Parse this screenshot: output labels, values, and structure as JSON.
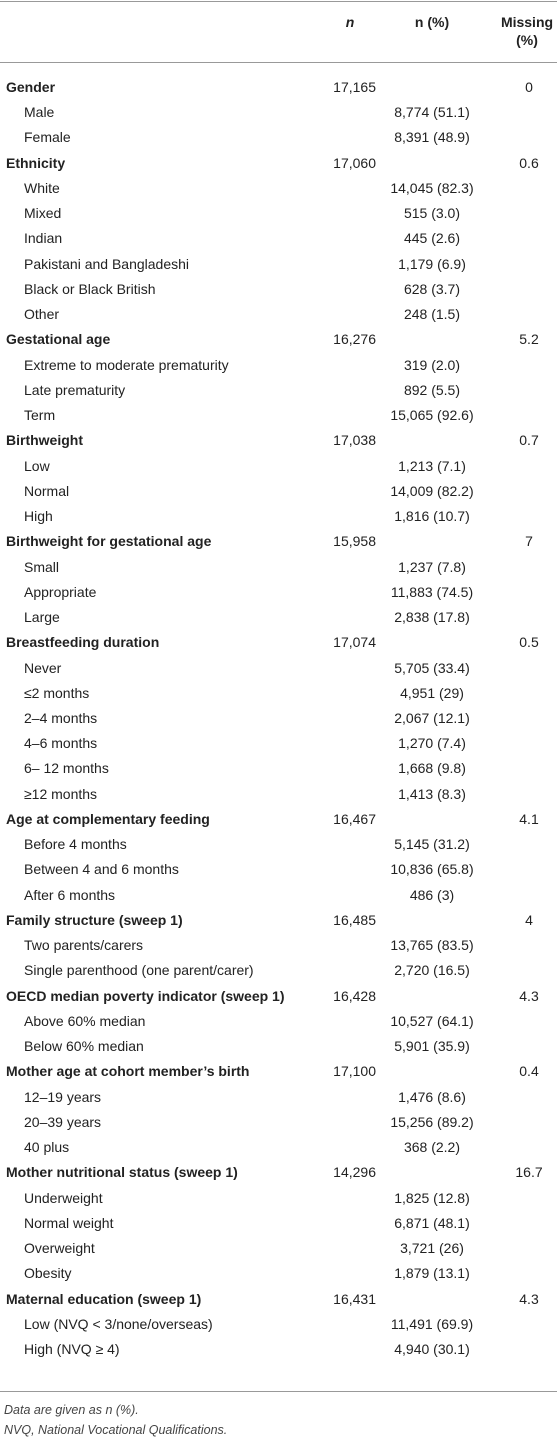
{
  "table": {
    "columns": [
      "n",
      "n (%)",
      "Missing (%)"
    ],
    "groups": [
      {
        "label": "Gender",
        "n": "17,165",
        "missing": "0",
        "items": [
          {
            "label": "Male",
            "n_pct": "8,774 (51.1)"
          },
          {
            "label": "Female",
            "n_pct": "8,391 (48.9)"
          }
        ]
      },
      {
        "label": "Ethnicity",
        "n": "17,060",
        "missing": "0.6",
        "items": [
          {
            "label": "White",
            "n_pct": "14,045 (82.3)"
          },
          {
            "label": "Mixed",
            "n_pct": "515 (3.0)"
          },
          {
            "label": "Indian",
            "n_pct": "445 (2.6)"
          },
          {
            "label": "Pakistani and Bangladeshi",
            "n_pct": "1,179 (6.9)"
          },
          {
            "label": "Black or Black British",
            "n_pct": "628 (3.7)"
          },
          {
            "label": "Other",
            "n_pct": "248 (1.5)"
          }
        ]
      },
      {
        "label": "Gestational age",
        "n": "16,276",
        "missing": "5.2",
        "items": [
          {
            "label": "Extreme to moderate prematurity",
            "n_pct": "319 (2.0)"
          },
          {
            "label": "Late prematurity",
            "n_pct": "892 (5.5)"
          },
          {
            "label": "Term",
            "n_pct": "15,065 (92.6)"
          }
        ]
      },
      {
        "label": "Birthweight",
        "n": "17,038",
        "missing": "0.7",
        "items": [
          {
            "label": "Low",
            "n_pct": "1,213 (7.1)"
          },
          {
            "label": "Normal",
            "n_pct": "14,009 (82.2)"
          },
          {
            "label": "High",
            "n_pct": "1,816 (10.7)"
          }
        ]
      },
      {
        "label": "Birthweight for gestational age",
        "n": "15,958",
        "missing": "7",
        "items": [
          {
            "label": "Small",
            "n_pct": "1,237 (7.8)"
          },
          {
            "label": "Appropriate",
            "n_pct": "11,883 (74.5)"
          },
          {
            "label": "Large",
            "n_pct": "2,838 (17.8)"
          }
        ]
      },
      {
        "label": "Breastfeeding duration",
        "n": "17,074",
        "missing": "0.5",
        "items": [
          {
            "label": "Never",
            "n_pct": "5,705 (33.4)"
          },
          {
            "label": "≤2 months",
            "n_pct": "4,951 (29)"
          },
          {
            "label": "2–4 months",
            "n_pct": "2,067 (12.1)"
          },
          {
            "label": "4–6 months",
            "n_pct": "1,270 (7.4)"
          },
          {
            "label": "6– 12 months",
            "n_pct": "1,668 (9.8)"
          },
          {
            "label": "≥12 months",
            "n_pct": "1,413 (8.3)"
          }
        ]
      },
      {
        "label": "Age at complementary feeding",
        "n": "16,467",
        "missing": "4.1",
        "items": [
          {
            "label": "Before 4 months",
            "n_pct": "5,145 (31.2)"
          },
          {
            "label": "Between 4 and 6 months",
            "n_pct": "10,836 (65.8)"
          },
          {
            "label": "After 6 months",
            "n_pct": "486 (3)"
          }
        ]
      },
      {
        "label": "Family structure (sweep 1)",
        "n": "16,485",
        "missing": "4",
        "items": [
          {
            "label": "Two parents/carers",
            "n_pct": "13,765 (83.5)"
          },
          {
            "label": "Single parenthood (one parent/carer)",
            "n_pct": "2,720 (16.5)"
          }
        ]
      },
      {
        "label": "OECD median poverty indicator (sweep 1)",
        "n": "16,428",
        "missing": "4.3",
        "items": [
          {
            "label": "Above 60% median",
            "n_pct": "10,527 (64.1)"
          },
          {
            "label": "Below 60% median",
            "n_pct": "5,901 (35.9)"
          }
        ]
      },
      {
        "label": "Mother age at cohort member’s birth",
        "n": "17,100",
        "missing": "0.4",
        "items": [
          {
            "label": "12–19 years",
            "n_pct": "1,476 (8.6)"
          },
          {
            "label": "20–39 years",
            "n_pct": "15,256 (89.2)"
          },
          {
            "label": "40 plus",
            "n_pct": "368 (2.2)"
          }
        ]
      },
      {
        "label": "Mother nutritional status (sweep 1)",
        "n": "14,296",
        "missing": "16.7",
        "items": [
          {
            "label": "Underweight",
            "n_pct": "1,825 (12.8)"
          },
          {
            "label": "Normal weight",
            "n_pct": "6,871 (48.1)"
          },
          {
            "label": "Overweight",
            "n_pct": "3,721 (26)"
          },
          {
            "label": "Obesity",
            "n_pct": "1,879 (13.1)"
          }
        ]
      },
      {
        "label": "Maternal education (sweep 1)",
        "n": "16,431",
        "missing": "4.3",
        "items": [
          {
            "label": "Low (NVQ < 3/none/overseas)",
            "n_pct": "11,491 (69.9)"
          },
          {
            "label": "High (NVQ ≥ 4)",
            "n_pct": "4,940 (30.1)"
          }
        ]
      }
    ]
  },
  "footnotes": [
    "Data are given as n (%).",
    "NVQ, National Vocational Qualifications."
  ]
}
